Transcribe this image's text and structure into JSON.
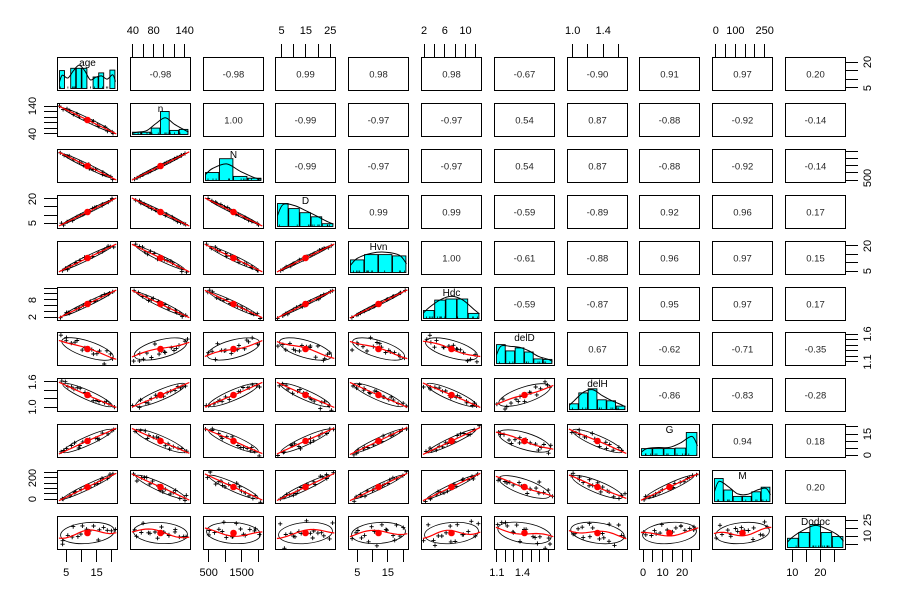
{
  "chart_data": {
    "type": "scatter",
    "subtype": "scatterplot-matrix",
    "title": "",
    "variables": [
      "age",
      "n",
      "N",
      "D",
      "Hvn",
      "Hdc",
      "delD",
      "delH",
      "G",
      "M",
      "Dodoc"
    ],
    "diagonal_panels": "histogram with density curve and variable name",
    "lower_triangle_panels": "scatter points with loess smooth line, centroid dot and correlation ellipse",
    "upper_triangle_panels": "pearson correlation coefficients",
    "correlations_upper": [
      {
        "var": "age",
        "values": [
          -0.98,
          -0.98,
          0.99,
          0.98,
          0.98,
          -0.67,
          -0.9,
          0.91,
          0.97,
          0.2
        ]
      },
      {
        "var": "n",
        "values": [
          1.0,
          -0.99,
          -0.97,
          -0.97,
          0.54,
          0.87,
          -0.88,
          -0.92,
          -0.14
        ]
      },
      {
        "var": "N",
        "values": [
          -0.99,
          -0.97,
          -0.97,
          0.54,
          0.87,
          -0.88,
          -0.92,
          -0.14
        ]
      },
      {
        "var": "D",
        "values": [
          0.99,
          0.99,
          -0.59,
          -0.89,
          0.92,
          0.96,
          0.17
        ]
      },
      {
        "var": "Hvn",
        "values": [
          1.0,
          -0.61,
          -0.88,
          0.96,
          0.97,
          0.15
        ]
      },
      {
        "var": "Hdc",
        "values": [
          -0.59,
          -0.87,
          0.95,
          0.97,
          0.17
        ]
      },
      {
        "var": "delD",
        "values": [
          0.67,
          -0.62,
          -0.71,
          -0.35
        ]
      },
      {
        "var": "delH",
        "values": [
          -0.86,
          -0.83,
          -0.28
        ]
      },
      {
        "var": "G",
        "values": [
          0.94,
          0.18
        ]
      },
      {
        "var": "M",
        "values": [
          0.2
        ]
      },
      {
        "var": "Dodoc",
        "values": []
      }
    ],
    "variable_ranges": {
      "age": [
        5,
        20
      ],
      "n": [
        40,
        140
      ],
      "N": [
        500,
        2000
      ],
      "D": [
        5,
        25
      ],
      "Hvn": [
        5,
        20
      ],
      "Hdc": [
        2,
        12
      ],
      "delD": [
        1.1,
        1.7
      ],
      "delH": [
        1.0,
        1.6
      ],
      "G": [
        0,
        25
      ],
      "M": [
        0,
        250
      ],
      "Dodoc": [
        10,
        25
      ]
    },
    "histograms": {
      "age": [
        0.78,
        0,
        0.88,
        0.88,
        0.88,
        0,
        0.5,
        0.68,
        0,
        0.8
      ],
      "n": [
        0.1,
        0.1,
        0.28,
        1.0,
        0.18,
        0.22
      ],
      "N": [
        0.35,
        0.95,
        0.18,
        0.1
      ],
      "D": [
        1.0,
        0.78,
        0.6,
        0.42,
        0.12
      ],
      "Hvn": [
        0.55,
        0.78,
        0.78,
        0.72
      ],
      "Hdc": [
        0.35,
        0.8,
        0.85,
        0.85,
        0.22
      ],
      "delD": [
        0.82,
        0.55,
        0.68,
        0.5,
        0.2,
        0.18
      ],
      "delH": [
        0.25,
        0.72,
        0.9,
        0.42,
        0.38,
        0.15
      ],
      "G": [
        0.3,
        0.3,
        0.3,
        0.32,
        1.0
      ],
      "M": [
        1.0,
        0.5,
        0.22,
        0.22,
        0.42,
        0.62
      ],
      "Dodoc": [
        0.4,
        0.65,
        1.0,
        0.65,
        0.48
      ]
    },
    "axes": {
      "top": [
        {
          "col": 1,
          "ticks": [
            0.05,
            0.22,
            0.39,
            0.56,
            0.73,
            0.9
          ],
          "labels": [
            {
              "t": "40",
              "f": 0.05
            },
            {
              "t": "80",
              "f": 0.39
            },
            {
              "t": "140",
              "f": 0.9
            }
          ]
        },
        {
          "col": 3,
          "ticks": [
            0.1,
            0.3,
            0.5,
            0.7,
            0.9
          ],
          "labels": [
            {
              "t": "5",
              "f": 0.1
            },
            {
              "t": "15",
              "f": 0.5
            },
            {
              "t": "25",
              "f": 0.9
            }
          ]
        },
        {
          "col": 5,
          "ticks": [
            0.05,
            0.22,
            0.39,
            0.56,
            0.73,
            0.9
          ],
          "labels": [
            {
              "t": "2",
              "f": 0.05
            },
            {
              "t": "6",
              "f": 0.39
            },
            {
              "t": "10",
              "f": 0.73
            }
          ]
        },
        {
          "col": 7,
          "ticks": [
            0.1,
            0.35,
            0.6,
            0.85
          ],
          "labels": [
            {
              "t": "1.0",
              "f": 0.1
            },
            {
              "t": "1.4",
              "f": 0.6
            }
          ]
        },
        {
          "col": 9,
          "ticks": [
            0.06,
            0.22,
            0.38,
            0.54,
            0.7,
            0.86
          ],
          "labels": [
            {
              "t": "0",
              "f": 0.06
            },
            {
              "t": "100",
              "f": 0.38
            },
            {
              "t": "250",
              "f": 0.86
            }
          ]
        }
      ],
      "bottom": [
        {
          "col": 0,
          "ticks": [
            0.15,
            0.4,
            0.65,
            0.9
          ],
          "labels": [
            {
              "t": "5",
              "f": 0.15
            },
            {
              "t": "15",
              "f": 0.65
            }
          ]
        },
        {
          "col": 2,
          "ticks": [
            0.1,
            0.37,
            0.64,
            0.91
          ],
          "labels": [
            {
              "t": "500",
              "f": 0.1
            },
            {
              "t": "1500",
              "f": 0.64
            }
          ]
        },
        {
          "col": 4,
          "ticks": [
            0.15,
            0.4,
            0.65,
            0.9
          ],
          "labels": [
            {
              "t": "5",
              "f": 0.15
            },
            {
              "t": "15",
              "f": 0.65
            }
          ]
        },
        {
          "col": 6,
          "ticks": [
            0.05,
            0.19,
            0.33,
            0.47,
            0.61,
            0.75,
            0.89
          ],
          "labels": [
            {
              "t": "1.1",
              "f": 0.05
            },
            {
              "t": "1.4",
              "f": 0.47
            }
          ]
        },
        {
          "col": 8,
          "ticks": [
            0.06,
            0.22,
            0.38,
            0.54,
            0.7,
            0.86
          ],
          "labels": [
            {
              "t": "0",
              "f": 0.06
            },
            {
              "t": "10",
              "f": 0.38
            },
            {
              "t": "20",
              "f": 0.7
            }
          ]
        },
        {
          "col": 10,
          "ticks": [
            0.12,
            0.35,
            0.58,
            0.81
          ],
          "labels": [
            {
              "t": "10",
              "f": 0.12
            },
            {
              "t": "20",
              "f": 0.58
            }
          ]
        }
      ],
      "left": [
        {
          "row": 1,
          "ticks": [
            0.1,
            0.26,
            0.42,
            0.58,
            0.74,
            0.9
          ],
          "labels": [
            {
              "t": "140",
              "f": 0.1
            },
            {
              "t": "40",
              "f": 0.9
            }
          ]
        },
        {
          "row": 3,
          "ticks": [
            0.12,
            0.36,
            0.6,
            0.84
          ],
          "labels": [
            {
              "t": "20",
              "f": 0.12
            },
            {
              "t": "5",
              "f": 0.84
            }
          ]
        },
        {
          "row": 5,
          "ticks": [
            0.05,
            0.22,
            0.39,
            0.56,
            0.73,
            0.9
          ],
          "labels": [
            {
              "t": "8",
              "f": 0.39
            },
            {
              "t": "2",
              "f": 0.9
            }
          ]
        },
        {
          "row": 7,
          "ticks": [
            0.1,
            0.35,
            0.6,
            0.85
          ],
          "labels": [
            {
              "t": "1.6",
              "f": 0.1
            },
            {
              "t": "1.0",
              "f": 0.85
            }
          ]
        },
        {
          "row": 9,
          "ticks": [
            0.06,
            0.22,
            0.38,
            0.54,
            0.7,
            0.86
          ],
          "labels": [
            {
              "t": "200",
              "f": 0.22
            },
            {
              "t": "0",
              "f": 0.86
            }
          ]
        }
      ],
      "right": [
        {
          "row": 0,
          "ticks": [
            0.15,
            0.4,
            0.65,
            0.9
          ],
          "labels": [
            {
              "t": "20",
              "f": 0.15
            },
            {
              "t": "5",
              "f": 0.9
            }
          ]
        },
        {
          "row": 2,
          "ticks": [
            0.08,
            0.29,
            0.5,
            0.71,
            0.92
          ],
          "labels": [
            {
              "t": "500",
              "f": 0.85
            }
          ]
        },
        {
          "row": 4,
          "ticks": [
            0.15,
            0.4,
            0.65,
            0.9
          ],
          "labels": [
            {
              "t": "20",
              "f": 0.15
            },
            {
              "t": "5",
              "f": 0.9
            }
          ]
        },
        {
          "row": 6,
          "ticks": [
            0.06,
            0.22,
            0.38,
            0.54,
            0.7,
            0.86
          ],
          "labels": [
            {
              "t": "1.6",
              "f": 0.06
            },
            {
              "t": "1.1",
              "f": 0.86
            }
          ]
        },
        {
          "row": 8,
          "ticks": [
            0.08,
            0.29,
            0.5,
            0.71,
            0.92
          ],
          "labels": [
            {
              "t": "15",
              "f": 0.29
            },
            {
              "t": "0",
              "f": 0.92
            }
          ]
        },
        {
          "row": 10,
          "ticks": [
            0.12,
            0.36,
            0.6,
            0.84
          ],
          "labels": [
            {
              "t": "25",
              "f": 0.12
            },
            {
              "t": "10",
              "f": 0.6
            }
          ]
        }
      ]
    },
    "legend": "none",
    "grid": "off",
    "colors": {
      "histogram_fill": "#00ffff",
      "smooth_line": "#ff0000",
      "centroid_dot": "#ff0000",
      "points": "#000000",
      "panel_border": "#000000",
      "correlation_text": "#262626",
      "background": "#ffffff"
    }
  }
}
